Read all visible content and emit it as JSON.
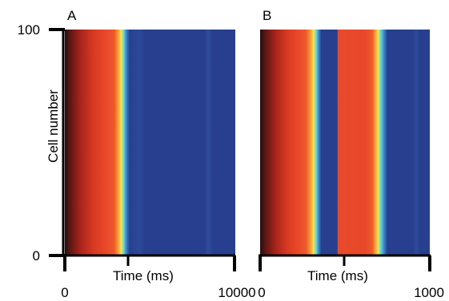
{
  "chart_data": [
    {
      "panel": "A",
      "type": "heatmap",
      "ylabel": "Cell number",
      "xlabel": "Time (ms)",
      "xlim": [
        0,
        10000
      ],
      "ylim": [
        0,
        100
      ],
      "x_ticks": [
        "0",
        "10000"
      ],
      "y_ticks": [
        "0",
        "100"
      ],
      "events": [
        {
          "type": "depolarization",
          "start": 0,
          "plateau_end": 3300,
          "repolarized": 3700
        }
      ]
    },
    {
      "panel": "B",
      "type": "heatmap",
      "xlabel": "Time (ms)",
      "xlim": [
        0,
        1000
      ],
      "ylim": [
        0,
        100
      ],
      "x_ticks": [
        "0",
        "1000"
      ],
      "events": [
        {
          "type": "depolarization",
          "start": 0,
          "plateau_end": 310,
          "repolarized": 360
        },
        {
          "type": "depolarization",
          "start": 460,
          "plateau_end": 690,
          "repolarized": 740
        }
      ]
    }
  ],
  "colors": {
    "background": "#283f8f",
    "plateau": "#e9482a",
    "deep_red": "#9a1e16",
    "dark_edge": "#2a0f0e",
    "yellow": "#f3e74a",
    "cyan": "#5fd7e0",
    "axis": "#000000"
  }
}
